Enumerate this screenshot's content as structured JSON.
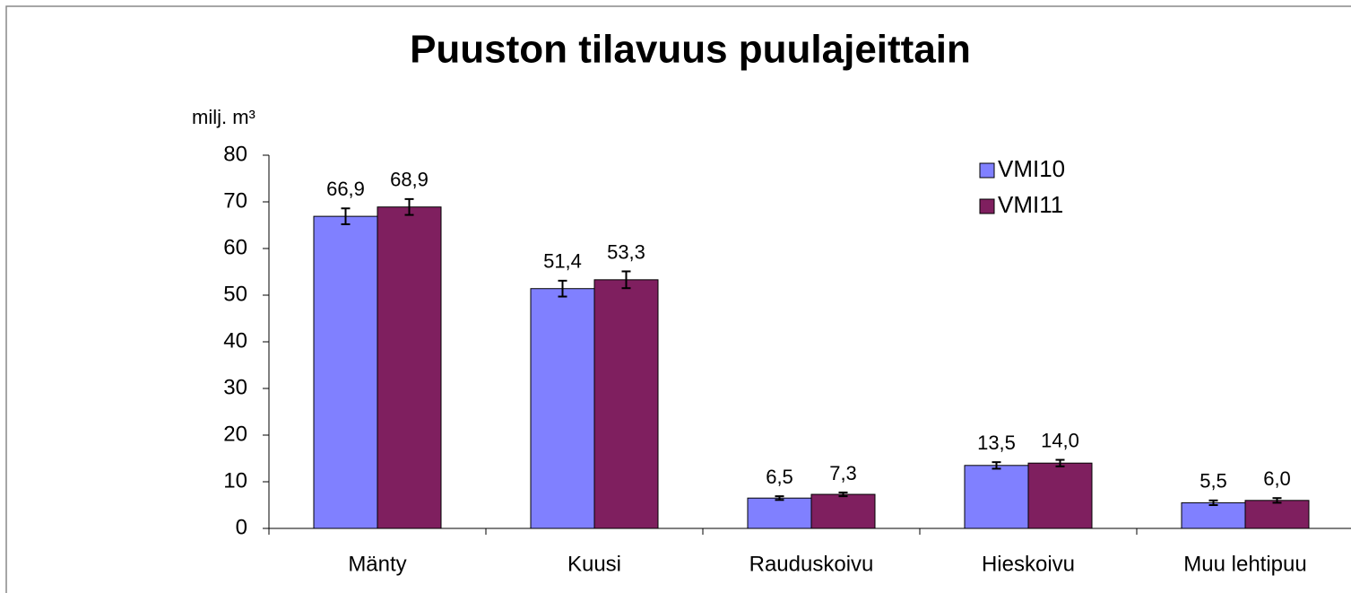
{
  "chart_data": {
    "type": "bar",
    "title": "Puuston tilavuus puulajeittain",
    "y_label": "milj. m³",
    "categories": [
      "Mänty",
      "Kuusi",
      "Rauduskoivu",
      "Hieskoivu",
      "Muu lehtipuu"
    ],
    "series": [
      {
        "name": "VMI10",
        "color": "#8080ff",
        "values": [
          66.9,
          51.4,
          6.5,
          13.5,
          5.5
        ],
        "value_labels": [
          "66,9",
          "51,4",
          "6,5",
          "13,5",
          "5,5"
        ],
        "errors": [
          1.7,
          1.7,
          0.4,
          0.7,
          0.5
        ]
      },
      {
        "name": "VMI11",
        "color": "#7f1f5f",
        "values": [
          68.9,
          53.3,
          7.3,
          14.0,
          6.0
        ],
        "value_labels": [
          "68,9",
          "53,3",
          "7,3",
          "14,0",
          "6,0"
        ],
        "errors": [
          1.7,
          1.8,
          0.4,
          0.7,
          0.5
        ]
      }
    ],
    "ylim": [
      0,
      80
    ],
    "yticks": [
      0,
      10,
      20,
      30,
      40,
      50,
      60,
      70,
      80
    ],
    "legend": "upper right",
    "error_bars": true
  }
}
